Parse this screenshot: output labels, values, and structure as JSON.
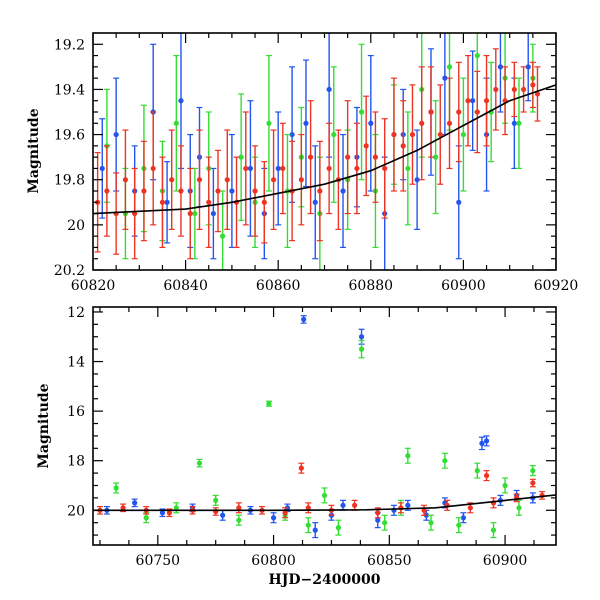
{
  "chart_data": [
    {
      "type": "scatter",
      "title": "",
      "xlabel": "",
      "ylabel": "Magnitude",
      "xlim": [
        60820,
        60920
      ],
      "ylim": [
        20.2,
        19.15
      ],
      "y_inverted": true,
      "x_ticks": [
        "60820",
        "60840",
        "60860",
        "60880",
        "60900",
        "60920"
      ],
      "y_ticks": [
        "19.2",
        "19.4",
        "19.6",
        "19.8",
        "20",
        "20.2"
      ],
      "x_tick_values": [
        60820,
        60840,
        60860,
        60880,
        60900,
        60920
      ],
      "y_tick_values": [
        19.2,
        19.4,
        19.6,
        19.8,
        20.0,
        20.2
      ],
      "series": [
        {
          "color": "#2255ee",
          "points": [
            [
              60822,
              19.75,
              0.22
            ],
            [
              60825,
              19.6,
              0.25
            ],
            [
              60829,
              19.85,
              0.2
            ],
            [
              60833,
              19.5,
              0.3
            ],
            [
              60836,
              19.9,
              0.18
            ],
            [
              60839,
              19.45,
              0.3
            ],
            [
              60841,
              19.85,
              0.25
            ],
            [
              60843,
              19.7,
              0.22
            ],
            [
              60846,
              19.95,
              0.2
            ],
            [
              60850,
              19.85,
              0.25
            ],
            [
              60854,
              19.75,
              0.3
            ],
            [
              60857,
              19.95,
              0.2
            ],
            [
              60860,
              19.75,
              0.25
            ],
            [
              60863,
              19.6,
              0.3
            ],
            [
              60866,
              19.55,
              0.28
            ],
            [
              60868,
              19.9,
              0.25
            ],
            [
              60871,
              19.4,
              0.3
            ],
            [
              60874,
              19.85,
              0.25
            ],
            [
              60877,
              19.7,
              0.22
            ],
            [
              60880,
              19.55,
              0.3
            ],
            [
              60883,
              19.95,
              0.25
            ],
            [
              60887,
              19.6,
              0.2
            ],
            [
              60890,
              19.8,
              0.22
            ],
            [
              60893,
              19.5,
              0.28
            ],
            [
              60896,
              19.35,
              0.25
            ],
            [
              60899,
              19.9,
              0.25
            ],
            [
              60902,
              19.45,
              0.22
            ],
            [
              60905,
              19.6,
              0.25
            ],
            [
              60908,
              19.3,
              0.2
            ],
            [
              60911,
              19.55,
              0.2
            ],
            [
              60914,
              19.3,
              0.15
            ]
          ]
        },
        {
          "color": "#33dd33",
          "points": [
            [
              60823,
              19.65,
              0.25
            ],
            [
              60827,
              19.95,
              0.2
            ],
            [
              60831,
              19.75,
              0.28
            ],
            [
              60835,
              19.85,
              0.22
            ],
            [
              60838,
              19.55,
              0.3
            ],
            [
              60842,
              19.95,
              0.2
            ],
            [
              60845,
              19.75,
              0.25
            ],
            [
              60848,
              20.05,
              0.2
            ],
            [
              60852,
              19.7,
              0.28
            ],
            [
              60855,
              19.9,
              0.2
            ],
            [
              60858,
              19.55,
              0.3
            ],
            [
              60862,
              19.85,
              0.25
            ],
            [
              60865,
              19.7,
              0.22
            ],
            [
              60869,
              19.95,
              0.25
            ],
            [
              60872,
              19.6,
              0.3
            ],
            [
              60875,
              19.8,
              0.22
            ],
            [
              60878,
              19.5,
              0.3
            ],
            [
              60881,
              19.85,
              0.25
            ],
            [
              60885,
              19.6,
              0.22
            ],
            [
              60888,
              19.75,
              0.25
            ],
            [
              60891,
              19.4,
              0.3
            ],
            [
              60894,
              19.7,
              0.25
            ],
            [
              60897,
              19.3,
              0.28
            ],
            [
              60900,
              19.6,
              0.25
            ],
            [
              60903,
              19.25,
              0.25
            ],
            [
              60906,
              19.5,
              0.22
            ],
            [
              60909,
              19.35,
              0.2
            ],
            [
              60912,
              19.55,
              0.2
            ],
            [
              60915,
              19.35,
              0.15
            ]
          ]
        },
        {
          "color": "#ee3322",
          "points": [
            [
              60821,
              19.9,
              0.22
            ],
            [
              60823,
              19.85,
              0.2
            ],
            [
              60825,
              19.95,
              0.18
            ],
            [
              60827,
              19.8,
              0.22
            ],
            [
              60829,
              19.95,
              0.2
            ],
            [
              60831,
              19.85,
              0.22
            ],
            [
              60833,
              19.75,
              0.25
            ],
            [
              60835,
              19.9,
              0.2
            ],
            [
              60837,
              19.8,
              0.22
            ],
            [
              60839,
              19.85,
              0.2
            ],
            [
              60841,
              19.95,
              0.2
            ],
            [
              60843,
              19.8,
              0.22
            ],
            [
              60845,
              19.9,
              0.2
            ],
            [
              60847,
              19.85,
              0.18
            ],
            [
              60849,
              19.8,
              0.22
            ],
            [
              60851,
              19.9,
              0.2
            ],
            [
              60853,
              19.75,
              0.25
            ],
            [
              60855,
              19.85,
              0.2
            ],
            [
              60857,
              19.9,
              0.18
            ],
            [
              60859,
              19.8,
              0.22
            ],
            [
              60861,
              19.75,
              0.2
            ],
            [
              60863,
              19.85,
              0.22
            ],
            [
              60865,
              19.8,
              0.2
            ],
            [
              60867,
              19.7,
              0.25
            ],
            [
              60869,
              19.85,
              0.22
            ],
            [
              60871,
              19.75,
              0.2
            ],
            [
              60873,
              19.8,
              0.22
            ],
            [
              60875,
              19.7,
              0.25
            ],
            [
              60877,
              19.75,
              0.2
            ],
            [
              60879,
              19.65,
              0.22
            ],
            [
              60881,
              19.7,
              0.2
            ],
            [
              60883,
              19.75,
              0.22
            ],
            [
              60885,
              19.6,
              0.25
            ],
            [
              60887,
              19.65,
              0.2
            ],
            [
              60889,
              19.6,
              0.22
            ],
            [
              60891,
              19.55,
              0.25
            ],
            [
              60893,
              19.5,
              0.2
            ],
            [
              60895,
              19.6,
              0.22
            ],
            [
              60897,
              19.55,
              0.2
            ],
            [
              60899,
              19.5,
              0.22
            ],
            [
              60901,
              19.45,
              0.2
            ],
            [
              60903,
              19.5,
              0.18
            ],
            [
              60905,
              19.45,
              0.2
            ],
            [
              60907,
              19.4,
              0.18
            ],
            [
              60909,
              19.45,
              0.15
            ],
            [
              60911,
              19.4,
              0.12
            ],
            [
              60913,
              19.4,
              0.1
            ],
            [
              60915,
              19.38,
              0.1
            ],
            [
              60916,
              19.42,
              0.12
            ]
          ]
        }
      ],
      "model_curve": {
        "color": "#000000",
        "points": [
          [
            60820,
            19.95
          ],
          [
            60830,
            19.94
          ],
          [
            60840,
            19.93
          ],
          [
            60850,
            19.9
          ],
          [
            60860,
            19.86
          ],
          [
            60870,
            19.82
          ],
          [
            60880,
            19.76
          ],
          [
            60890,
            19.67
          ],
          [
            60900,
            19.56
          ],
          [
            60910,
            19.45
          ],
          [
            60920,
            19.38
          ]
        ]
      }
    },
    {
      "type": "scatter",
      "title": "",
      "xlabel": "HJD−2400000",
      "ylabel": "Magnitude",
      "xlim": [
        60722,
        60922
      ],
      "ylim": [
        21.4,
        11.8
      ],
      "y_inverted": true,
      "x_ticks": [
        "60750",
        "60800",
        "60850",
        "60900"
      ],
      "y_ticks": [
        "12",
        "14",
        "16",
        "18",
        "20"
      ],
      "x_tick_values": [
        60750,
        60800,
        60850,
        60900
      ],
      "y_tick_values": [
        12,
        14,
        16,
        18,
        20
      ],
      "series": [
        {
          "color": "#2255ee",
          "points": [
            [
              60728,
              20.0,
              0.15
            ],
            [
              60740,
              19.7,
              0.15
            ],
            [
              60752,
              20.1,
              0.15
            ],
            [
              60765,
              19.9,
              0.15
            ],
            [
              60778,
              20.2,
              0.2
            ],
            [
              60790,
              20.0,
              0.15
            ],
            [
              60800,
              20.3,
              0.2
            ],
            [
              60806,
              19.9,
              0.15
            ],
            [
              60813,
              12.3,
              0.15
            ],
            [
              60818,
              20.8,
              0.3
            ],
            [
              60825,
              20.2,
              0.2
            ],
            [
              60830,
              19.8,
              0.2
            ],
            [
              60838,
              13.0,
              0.3
            ],
            [
              60845,
              20.4,
              0.3
            ],
            [
              60852,
              20.0,
              0.2
            ],
            [
              60858,
              19.8,
              0.2
            ],
            [
              60866,
              20.2,
              0.2
            ],
            [
              60874,
              19.7,
              0.2
            ],
            [
              60882,
              20.3,
              0.2
            ],
            [
              60890,
              17.3,
              0.25
            ],
            [
              60892,
              17.2,
              0.2
            ],
            [
              60898,
              19.6,
              0.2
            ],
            [
              60905,
              19.4,
              0.2
            ],
            [
              60912,
              19.5,
              0.2
            ]
          ]
        },
        {
          "color": "#33dd33",
          "points": [
            [
              60732,
              19.1,
              0.2
            ],
            [
              60745,
              20.3,
              0.2
            ],
            [
              60758,
              19.9,
              0.2
            ],
            [
              60768,
              18.1,
              0.15
            ],
            [
              60775,
              19.6,
              0.2
            ],
            [
              60785,
              20.4,
              0.2
            ],
            [
              60798,
              15.7,
              0.1
            ],
            [
              60805,
              20.2,
              0.2
            ],
            [
              60815,
              20.6,
              0.3
            ],
            [
              60822,
              19.4,
              0.3
            ],
            [
              60828,
              20.7,
              0.3
            ],
            [
              60838,
              13.5,
              0.35
            ],
            [
              60848,
              20.5,
              0.3
            ],
            [
              60855,
              19.9,
              0.3
            ],
            [
              60858,
              17.8,
              0.3
            ],
            [
              60868,
              20.5,
              0.3
            ],
            [
              60874,
              18.0,
              0.3
            ],
            [
              60880,
              20.6,
              0.3
            ],
            [
              60888,
              18.4,
              0.3
            ],
            [
              60895,
              20.8,
              0.3
            ],
            [
              60900,
              19.0,
              0.3
            ],
            [
              60906,
              19.9,
              0.3
            ],
            [
              60912,
              18.4,
              0.2
            ]
          ]
        },
        {
          "color": "#ee3322",
          "points": [
            [
              60725,
              20.0,
              0.15
            ],
            [
              60735,
              19.9,
              0.15
            ],
            [
              60745,
              20.0,
              0.15
            ],
            [
              60755,
              20.1,
              0.15
            ],
            [
              60765,
              20.0,
              0.15
            ],
            [
              60775,
              20.05,
              0.15
            ],
            [
              60785,
              19.9,
              0.2
            ],
            [
              60795,
              20.0,
              0.15
            ],
            [
              60805,
              20.1,
              0.2
            ],
            [
              60812,
              18.3,
              0.2
            ],
            [
              60815,
              19.9,
              0.2
            ],
            [
              60825,
              20.0,
              0.2
            ],
            [
              60835,
              19.8,
              0.2
            ],
            [
              60845,
              20.1,
              0.2
            ],
            [
              60855,
              19.9,
              0.2
            ],
            [
              60865,
              20.0,
              0.2
            ],
            [
              60875,
              19.8,
              0.2
            ],
            [
              60885,
              19.9,
              0.2
            ],
            [
              60892,
              18.6,
              0.2
            ],
            [
              60895,
              19.7,
              0.2
            ],
            [
              60905,
              19.5,
              0.15
            ],
            [
              60912,
              18.9,
              0.15
            ],
            [
              60916,
              19.4,
              0.15
            ]
          ]
        }
      ],
      "model_curve": {
        "color": "#000000",
        "points": [
          [
            60722,
            20.0
          ],
          [
            60760,
            20.0
          ],
          [
            60800,
            20.0
          ],
          [
            60840,
            19.98
          ],
          [
            60870,
            19.9
          ],
          [
            60900,
            19.6
          ],
          [
            60922,
            19.38
          ]
        ]
      }
    }
  ]
}
